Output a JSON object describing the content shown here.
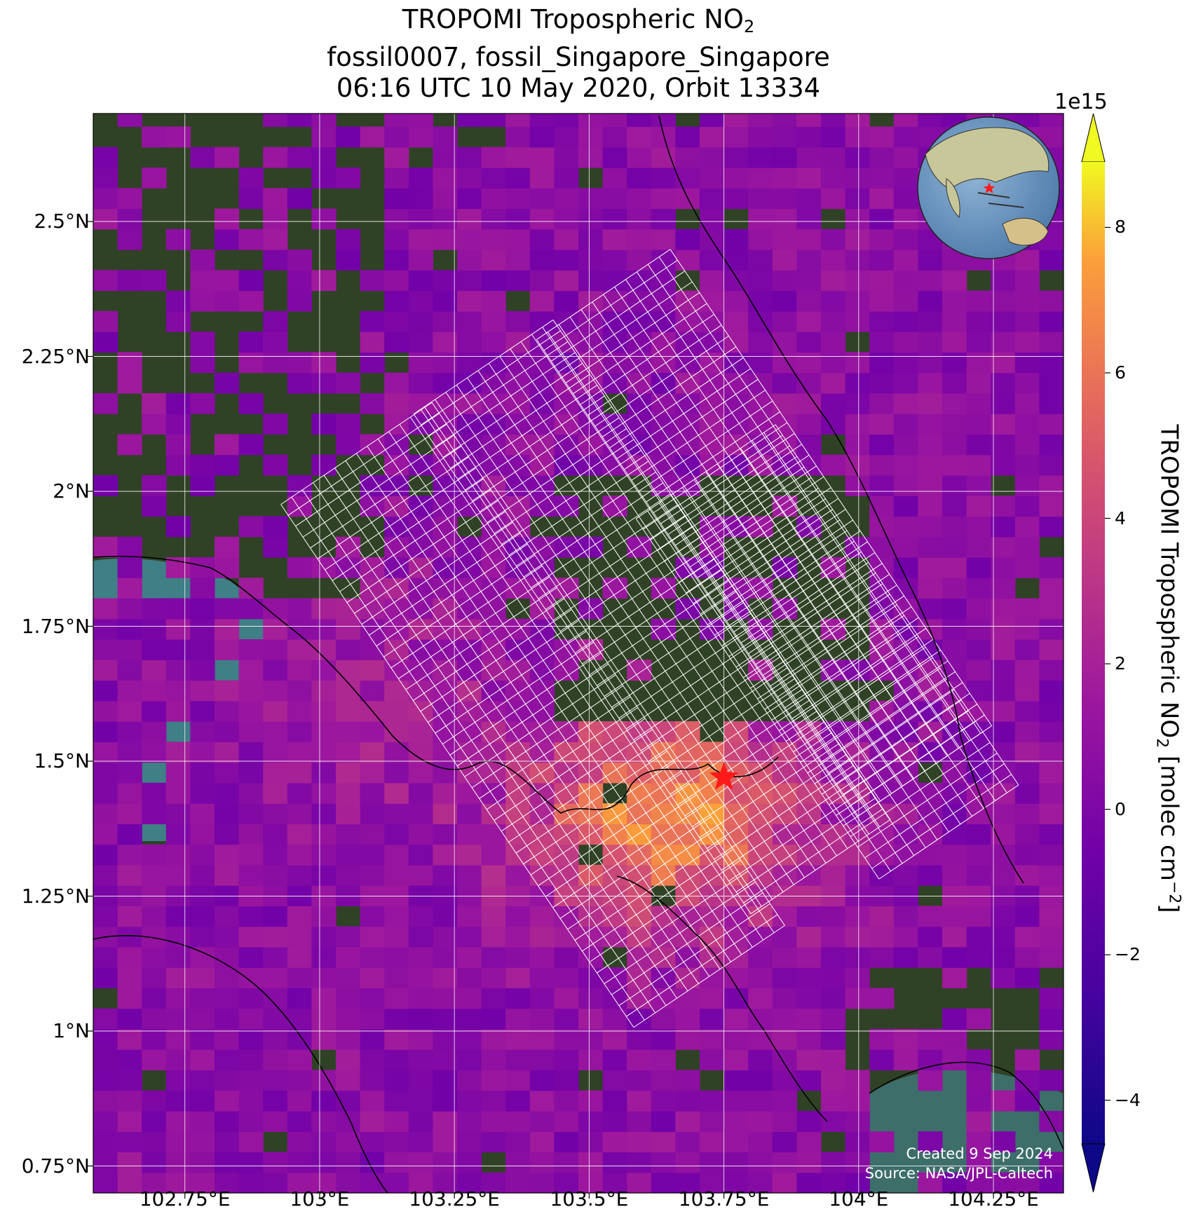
{
  "title": {
    "line1_prefix": "TROPOMI Tropospheric NO",
    "line1_sub": "2",
    "line2": "fossil0007, fossil_Singapore_Singapore",
    "line3": "06:16 UTC 10 May 2020, Orbit 13334"
  },
  "axes": {
    "x_ticks": [
      "102.75°E",
      "103°E",
      "103.25°E",
      "103.5°E",
      "103.75°E",
      "104°E",
      "104.25°E"
    ],
    "y_ticks": [
      "2.5°N",
      "2.25°N",
      "2°N",
      "1.75°N",
      "1.5°N",
      "1.25°N",
      "1°N",
      "0.75°N"
    ],
    "x_values": [
      102.75,
      103.0,
      103.25,
      103.5,
      103.75,
      104.0,
      104.25
    ],
    "y_values": [
      2.5,
      2.25,
      2.0,
      1.75,
      1.5,
      1.25,
      1.0,
      0.75
    ],
    "lon_range": [
      102.58,
      104.38
    ],
    "lat_range": [
      0.7,
      2.7
    ]
  },
  "colorbar": {
    "exponent": "1e15",
    "ticks": [
      "8",
      "6",
      "4",
      "2",
      "0",
      "−2",
      "−4"
    ],
    "tick_values": [
      8,
      6,
      4,
      2,
      0,
      -2,
      -4
    ],
    "range": [
      -4.6,
      8.9
    ],
    "colormap": "plasma",
    "extend": "both",
    "label_prefix": "TROPOMI Tropospheric NO",
    "label_sub": "2",
    "label_mid": " [molec cm",
    "label_sup": "−2",
    "label_suffix": "]"
  },
  "target": {
    "name": "fossil_Singapore_Singapore",
    "lon": 103.75,
    "lat": 1.47,
    "marker_color": "#ff1a1a"
  },
  "credits": {
    "line1": "Created 9 Sep 2024",
    "line2": "Source: NASA/JPL-Caltech"
  },
  "inset_globe": {
    "description_icon": "globe-icon",
    "marker_color": "#ff1a1a"
  },
  "colors": {
    "ocean": "#3f7f86",
    "land": "#2b3d22",
    "grid": "#ffffff",
    "coast": "#000000",
    "swath_grid": "#ffffff"
  }
}
